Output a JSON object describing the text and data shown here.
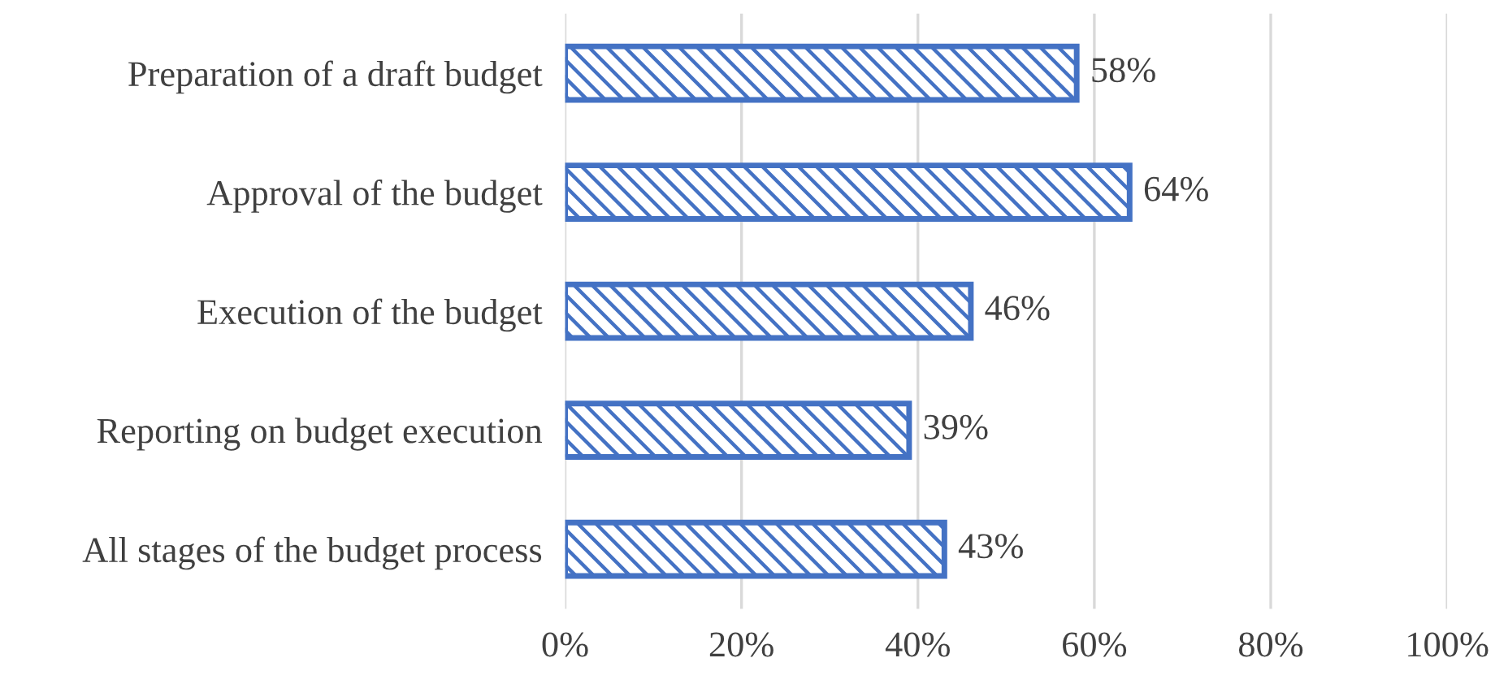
{
  "chart_data": {
    "type": "bar",
    "orientation": "horizontal",
    "categories": [
      "Preparation of a draft budget",
      "Approval of the budget",
      "Execution of the budget",
      "Reporting on budget execution",
      "All stages of the budget process"
    ],
    "values": [
      58,
      64,
      46,
      39,
      43
    ],
    "value_labels": [
      "58%",
      "64%",
      "46%",
      "39%",
      "43%"
    ],
    "color": "#4472c4",
    "xlim": [
      0,
      100
    ],
    "xticks": [
      {
        "value": 0,
        "label": "0%"
      },
      {
        "value": 20,
        "label": "20%"
      },
      {
        "value": 40,
        "label": "40%"
      },
      {
        "value": 60,
        "label": "60%"
      },
      {
        "value": 80,
        "label": "80%"
      },
      {
        "value": 100,
        "label": "100%"
      }
    ],
    "grid": "x"
  }
}
